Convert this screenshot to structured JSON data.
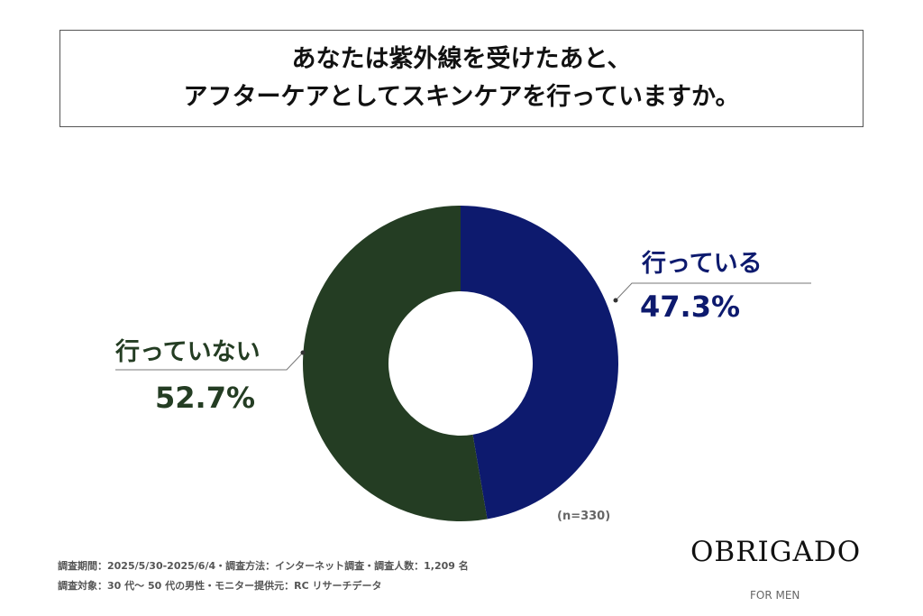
{
  "chart_data": {
    "type": "pie",
    "title": [
      "あなたは紫外線を受けたあと、",
      "アフターケアとしてスキンケアを行っていますか。"
    ],
    "slices": [
      {
        "label": "行っている",
        "value": 47.3,
        "value_label": "47.3%",
        "color": "#0d1a6e"
      },
      {
        "label": "行っていない",
        "value": 52.7,
        "value_label": "52.7%",
        "color": "#243d23"
      }
    ],
    "donut": true,
    "sample": "(n=330)"
  },
  "footer": {
    "line1": "調査期間：2025/5/30-2025/6/4・調査方法：インターネット調査・調査人数：1,209 名",
    "line2": "調査対象：30 代～ 50 代の男性・モニター提供元：RC リサーチデータ"
  },
  "brand": {
    "name": "OBRIGADO",
    "sub": "FOR MEN"
  }
}
